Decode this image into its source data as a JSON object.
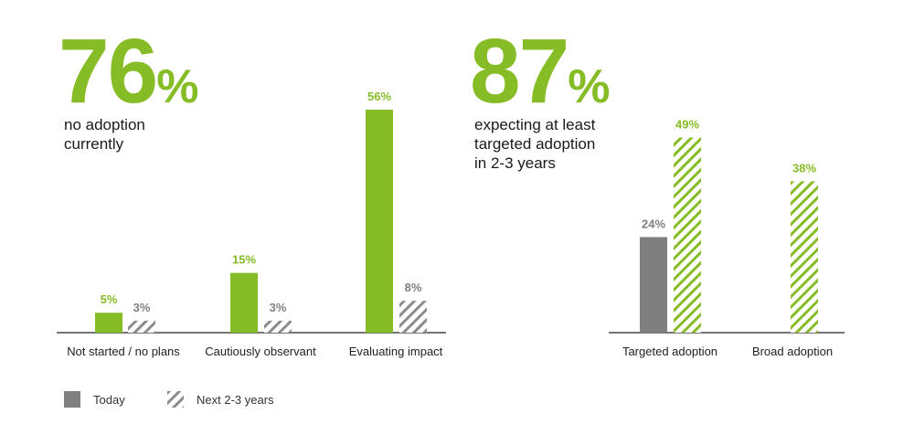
{
  "colors": {
    "today": "#7f7f7f",
    "next": "#a6a6a6",
    "accent_green": "#86bc25",
    "hatch_green": "#86bc25",
    "hatch_gray": "#8c8c8c",
    "axis": "#222222"
  },
  "stats": {
    "left": {
      "number": "76",
      "unit": "%",
      "desc_line1": "no adoption",
      "desc_line2": "currently"
    },
    "right": {
      "number": "87",
      "unit": "%",
      "desc_line1": "expecting at least",
      "desc_line2": "targeted adoption",
      "desc_line3": "in 2-3 years"
    }
  },
  "legend": {
    "today": "Today",
    "next": "Next 2-3 years"
  },
  "chart_data": [
    {
      "type": "bar",
      "categories": [
        "Not started / no plans",
        "Cautiously observant",
        "Evaluating impact"
      ],
      "series": [
        {
          "name": "Today",
          "values": [
            5,
            15,
            56
          ],
          "labels": [
            "5%",
            "15%",
            "56%"
          ]
        },
        {
          "name": "Next 2-3 years",
          "values": [
            3,
            3,
            8
          ],
          "labels": [
            "3%",
            "3%",
            "8%"
          ]
        }
      ],
      "ylim": [
        0,
        56
      ]
    },
    {
      "type": "bar",
      "categories": [
        "Targeted adoption",
        "Broad adoption"
      ],
      "series": [
        {
          "name": "Today",
          "values": [
            24,
            null
          ],
          "labels": [
            "24%",
            ""
          ]
        },
        {
          "name": "Next 2-3 years",
          "values": [
            49,
            38
          ],
          "labels": [
            "49%",
            "38%"
          ]
        }
      ],
      "ylim": [
        0,
        56
      ]
    }
  ]
}
